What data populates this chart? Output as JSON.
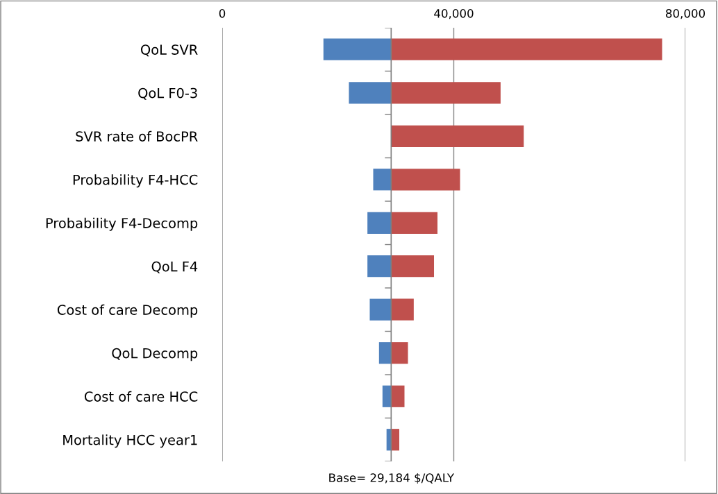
{
  "chart_data": {
    "type": "bar",
    "orientation": "horizontal",
    "categories": [
      "QoL SVR",
      "QoL F0-3",
      "SVR rate of BocPR",
      "Probability F4-HCC",
      "Probability F4-Decomp",
      "QoL F4",
      "Cost of care Decomp",
      "QoL Decomp",
      "Cost of care HCC",
      "Mortality HCC year1"
    ],
    "series": [
      {
        "color": "#4f81bd",
        "base": [
          29184,
          29184,
          null,
          29184,
          29184,
          29184,
          29184,
          29184,
          29184,
          29184
        ],
        "values": [
          -11700,
          -7300,
          null,
          -3100,
          -4100,
          -4100,
          -3700,
          -2100,
          -1500,
          -800
        ]
      },
      {
        "color": "#c0504d",
        "base": [
          29184,
          29184,
          29184,
          29184,
          29184,
          29184,
          29184,
          29184,
          29184,
          29184
        ],
        "values": [
          46800,
          18900,
          22900,
          11900,
          8000,
          7400,
          3900,
          2900,
          2300,
          1400
        ]
      }
    ],
    "xlim": [
      0,
      80000
    ],
    "xticks": [
      {
        "value": 0,
        "label": "0"
      },
      {
        "value": 40000,
        "label": "40,000"
      },
      {
        "value": 80000,
        "label": "80,000"
      }
    ],
    "grid": "x",
    "legend": false,
    "ref_lines": [
      {
        "axis": "x",
        "value": 29184,
        "label": "Base= 29,184 $/QALY",
        "color": "#7f7f7f"
      }
    ]
  }
}
